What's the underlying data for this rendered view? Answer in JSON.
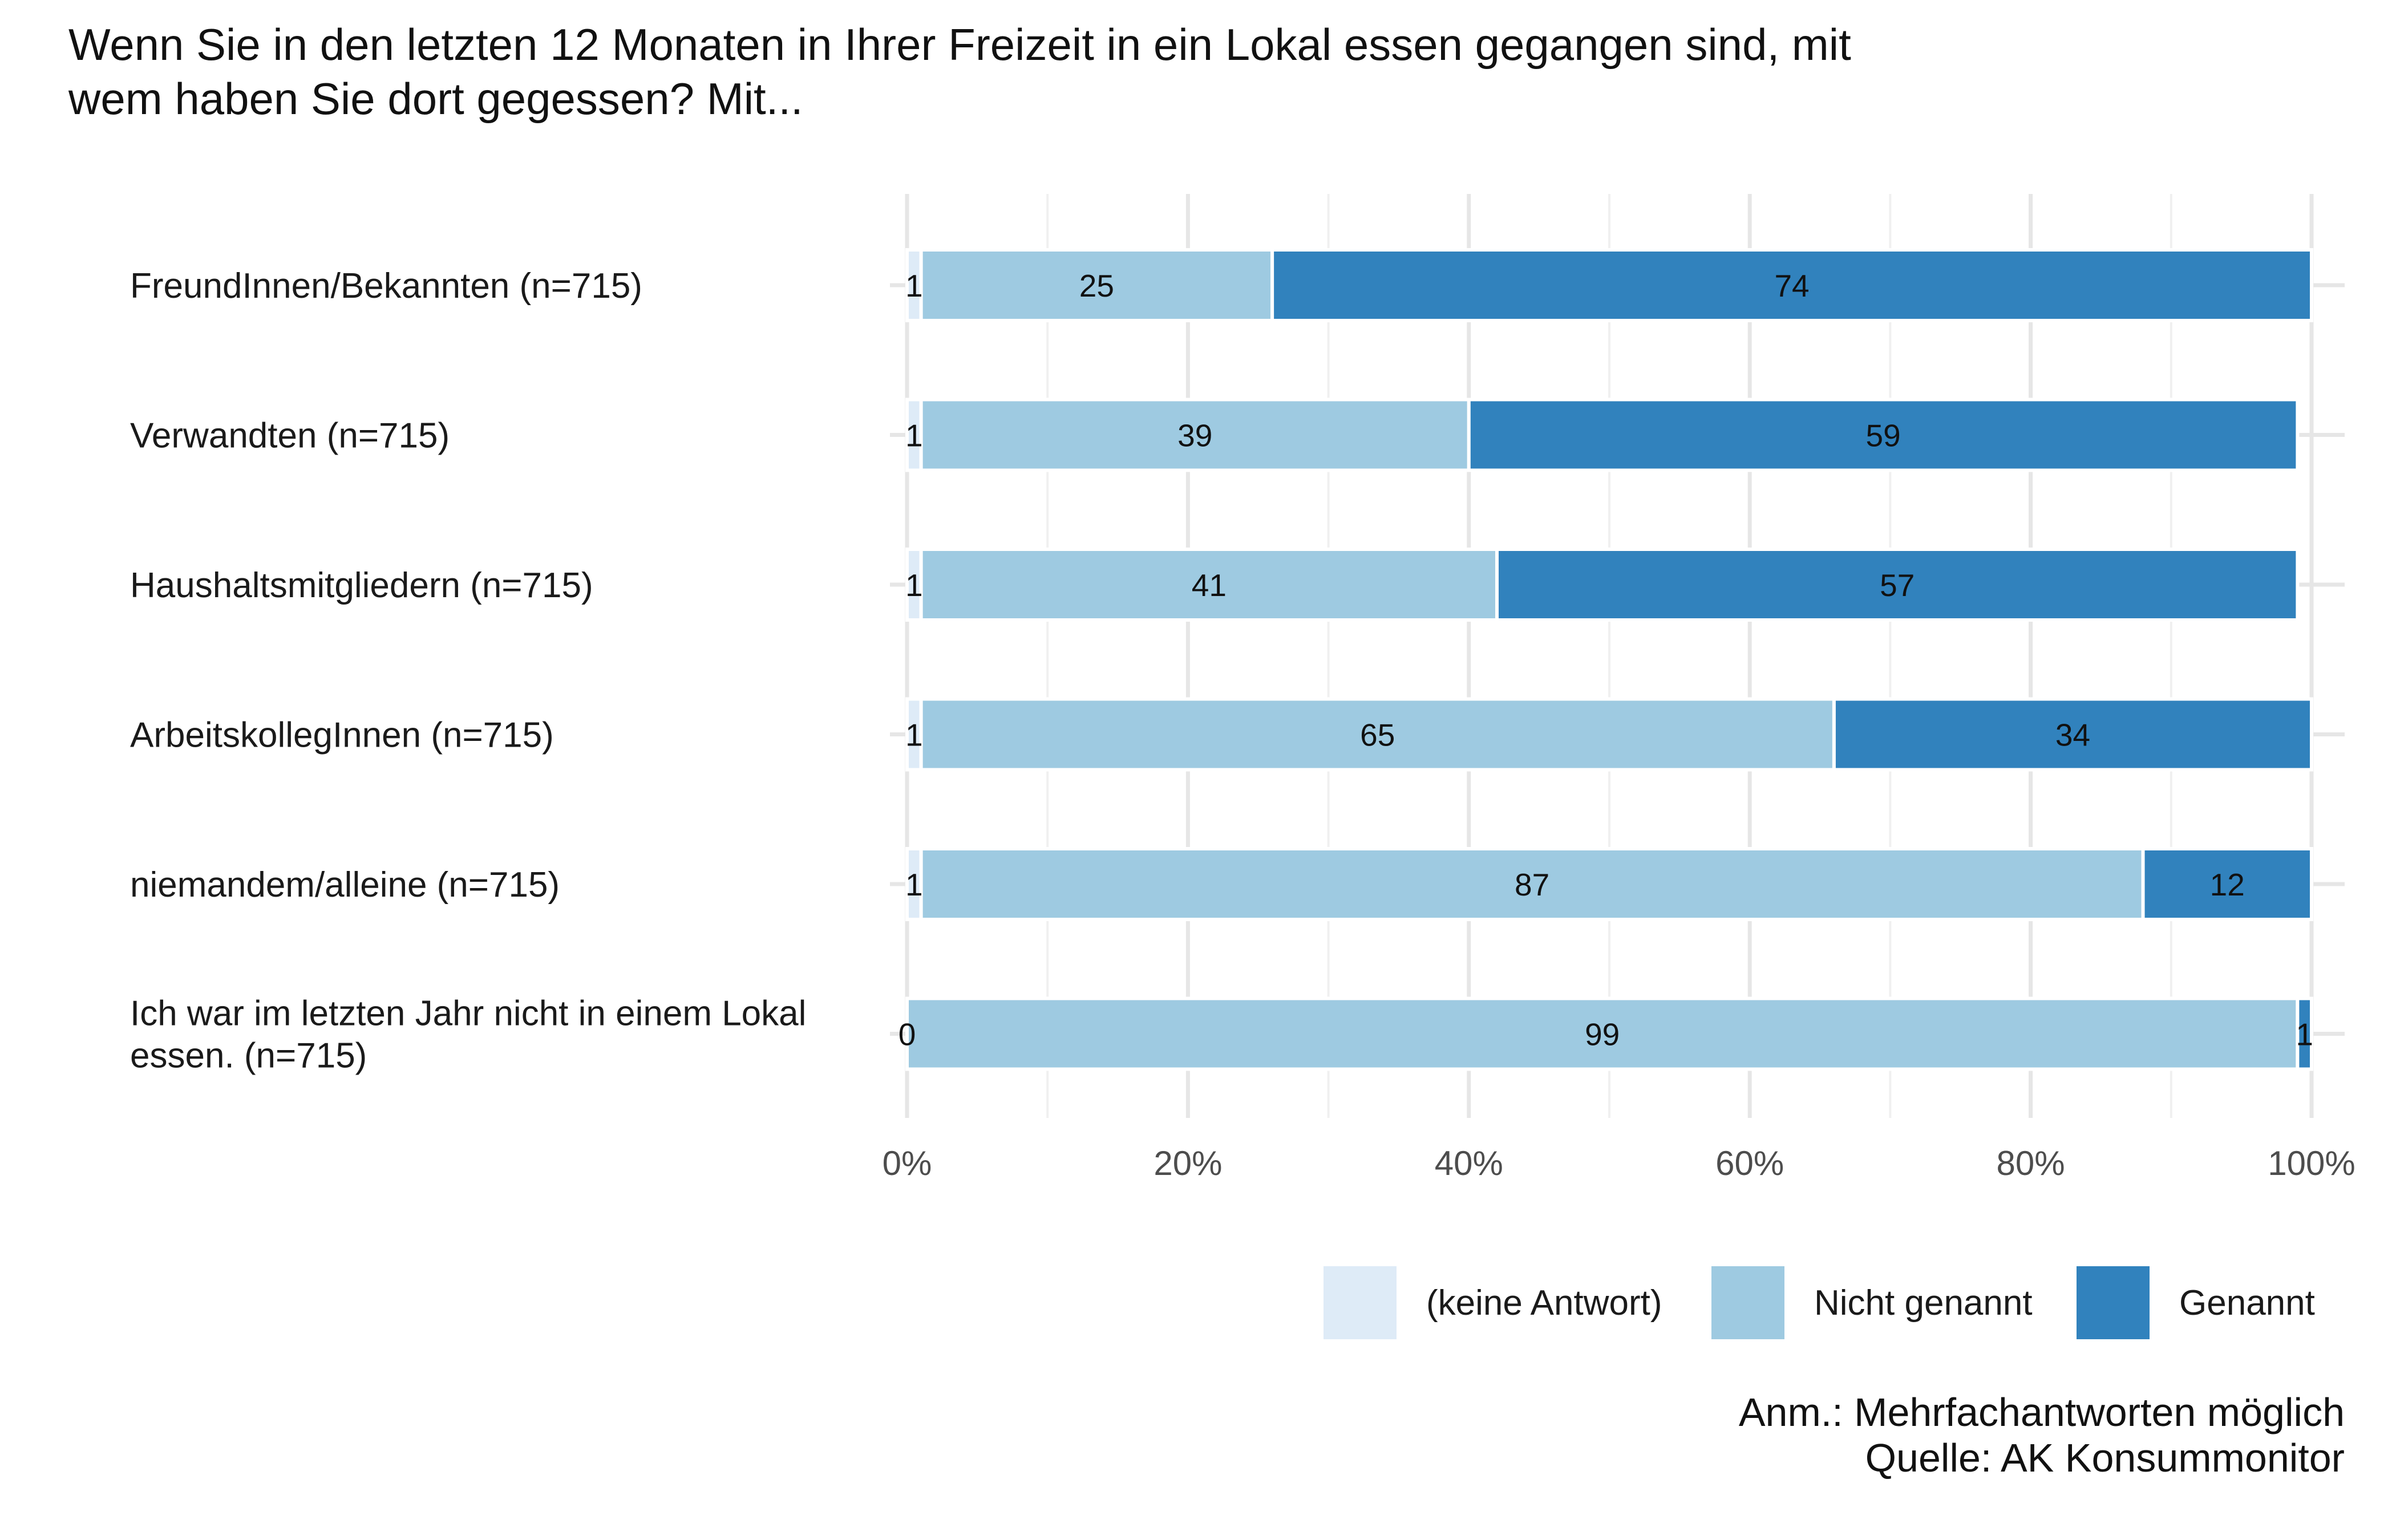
{
  "chart_data": {
    "type": "bar",
    "orientation": "horizontal",
    "stacked": true,
    "title": "Wenn Sie in den letzten 12 Monaten in Ihrer Freizeit in ein Lokal essen gegangen sind, mit wem haben Sie dort gegessen? Mit...",
    "title_lines": [
      "Wenn Sie in den letzten 12 Monaten in Ihrer Freizeit in ein Lokal essen gegangen sind, mit",
      "wem haben Sie dort gegessen? Mit..."
    ],
    "categories": [
      "FreundInnen/Bekannten (n=715)",
      "Verwandten (n=715)",
      "Haushaltsmitgliedern (n=715)",
      "ArbeitskollegInnen (n=715)",
      "niemandem/alleine (n=715)",
      "Ich war im letzten Jahr nicht in einem Lokal essen. (n=715)"
    ],
    "category_lines": [
      [
        "FreundInnen/Bekannten (n=715)"
      ],
      [
        "Verwandten (n=715)"
      ],
      [
        "Haushaltsmitgliedern (n=715)"
      ],
      [
        "ArbeitskollegInnen (n=715)"
      ],
      [
        "niemandem/alleine (n=715)"
      ],
      [
        "Ich war im letzten Jahr nicht in einem Lokal",
        "essen. (n=715)"
      ]
    ],
    "series": [
      {
        "name": "(keine Antwort)",
        "color": "#deebf7",
        "values": [
          1,
          1,
          1,
          1,
          1,
          0
        ]
      },
      {
        "name": "Nicht genannt",
        "color": "#9ecae1",
        "values": [
          25,
          39,
          41,
          65,
          87,
          99
        ]
      },
      {
        "name": "Genannt",
        "color": "#3182bd",
        "values": [
          74,
          59,
          57,
          34,
          12,
          1
        ]
      }
    ],
    "xlim": [
      0,
      100
    ],
    "xticks": [
      0,
      20,
      40,
      60,
      80,
      100
    ],
    "xtick_labels": [
      "0%",
      "20%",
      "40%",
      "60%",
      "80%",
      "100%"
    ],
    "grid": true,
    "legend_position": "bottom-right",
    "notes": [
      "Anm.: Mehrfachantworten möglich",
      "Quelle: AK Konsummonitor"
    ]
  }
}
